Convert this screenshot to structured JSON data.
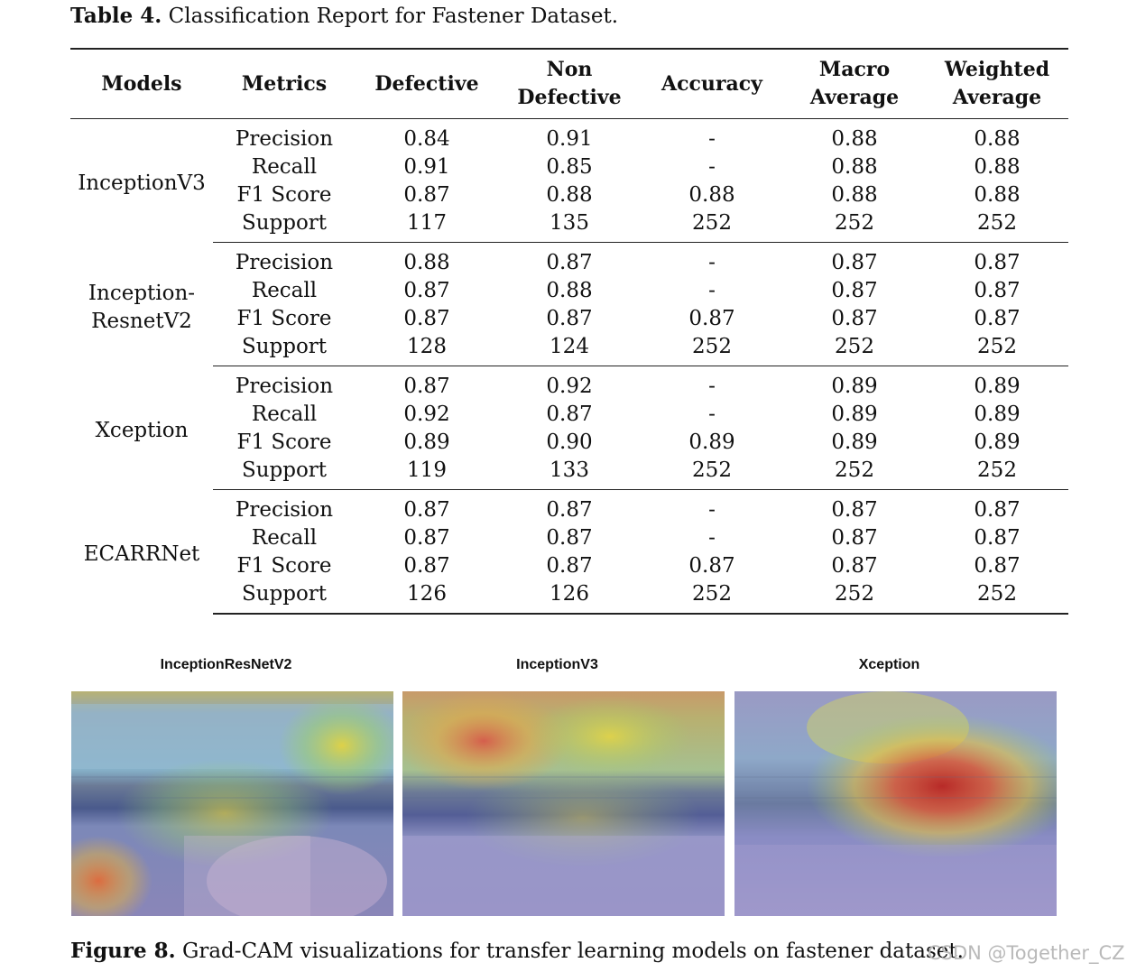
{
  "table": {
    "label": "Table 4.",
    "title": "Classification Report for Fastener Dataset.",
    "headers": {
      "models": "Models",
      "metrics": "Metrics",
      "defective": "Defective",
      "non_defective_1": "Non",
      "non_defective_2": "Defective",
      "accuracy": "Accuracy",
      "macro_1": "Macro",
      "macro_2": "Average",
      "weighted_1": "Weighted",
      "weighted_2": "Average"
    },
    "groups": [
      {
        "model_lines": [
          "InceptionV3"
        ],
        "rows": [
          {
            "metric": "Precision",
            "defective": "0.84",
            "non_defective": "0.91",
            "accuracy": "-",
            "macro": "0.88",
            "weighted": "0.88"
          },
          {
            "metric": "Recall",
            "defective": "0.91",
            "non_defective": "0.85",
            "accuracy": "-",
            "macro": "0.88",
            "weighted": "0.88"
          },
          {
            "metric": "F1 Score",
            "defective": "0.87",
            "non_defective": "0.88",
            "accuracy": "0.88",
            "macro": "0.88",
            "weighted": "0.88"
          },
          {
            "metric": "Support",
            "defective": "117",
            "non_defective": "135",
            "accuracy": "252",
            "macro": "252",
            "weighted": "252"
          }
        ]
      },
      {
        "model_lines": [
          "Inception-",
          "ResnetV2"
        ],
        "rows": [
          {
            "metric": "Precision",
            "defective": "0.88",
            "non_defective": "0.87",
            "accuracy": "-",
            "macro": "0.87",
            "weighted": "0.87"
          },
          {
            "metric": "Recall",
            "defective": "0.87",
            "non_defective": "0.88",
            "accuracy": "-",
            "macro": "0.87",
            "weighted": "0.87"
          },
          {
            "metric": "F1 Score",
            "defective": "0.87",
            "non_defective": "0.87",
            "accuracy": "0.87",
            "macro": "0.87",
            "weighted": "0.87"
          },
          {
            "metric": "Support",
            "defective": "128",
            "non_defective": "124",
            "accuracy": "252",
            "macro": "252",
            "weighted": "252"
          }
        ]
      },
      {
        "model_lines": [
          "Xception"
        ],
        "rows": [
          {
            "metric": "Precision",
            "defective": "0.87",
            "non_defective": "0.92",
            "accuracy": "-",
            "macro": "0.89",
            "weighted": "0.89"
          },
          {
            "metric": "Recall",
            "defective": "0.92",
            "non_defective": "0.87",
            "accuracy": "-",
            "macro": "0.89",
            "weighted": "0.89"
          },
          {
            "metric": "F1 Score",
            "defective": "0.89",
            "non_defective": "0.90",
            "accuracy": "0.89",
            "macro": "0.89",
            "weighted": "0.89"
          },
          {
            "metric": "Support",
            "defective": "119",
            "non_defective": "133",
            "accuracy": "252",
            "macro": "252",
            "weighted": "252"
          }
        ]
      },
      {
        "model_lines": [
          "ECARRNet"
        ],
        "rows": [
          {
            "metric": "Precision",
            "defective": "0.87",
            "non_defective": "0.87",
            "accuracy": "-",
            "macro": "0.87",
            "weighted": "0.87"
          },
          {
            "metric": "Recall",
            "defective": "0.87",
            "non_defective": "0.87",
            "accuracy": "-",
            "macro": "0.87",
            "weighted": "0.87"
          },
          {
            "metric": "F1 Score",
            "defective": "0.87",
            "non_defective": "0.87",
            "accuracy": "0.87",
            "macro": "0.87",
            "weighted": "0.87"
          },
          {
            "metric": "Support",
            "defective": "126",
            "non_defective": "126",
            "accuracy": "252",
            "macro": "252",
            "weighted": "252"
          }
        ]
      }
    ]
  },
  "figure": {
    "label": "Figure 8.",
    "caption": "Grad-CAM visualizations for transfer learning models on fastener dataset.",
    "panels": [
      {
        "title": "InceptionResNetV2"
      },
      {
        "title": "InceptionV3"
      },
      {
        "title": "Xception"
      }
    ]
  },
  "watermark": "CSDN @Together_CZ"
}
